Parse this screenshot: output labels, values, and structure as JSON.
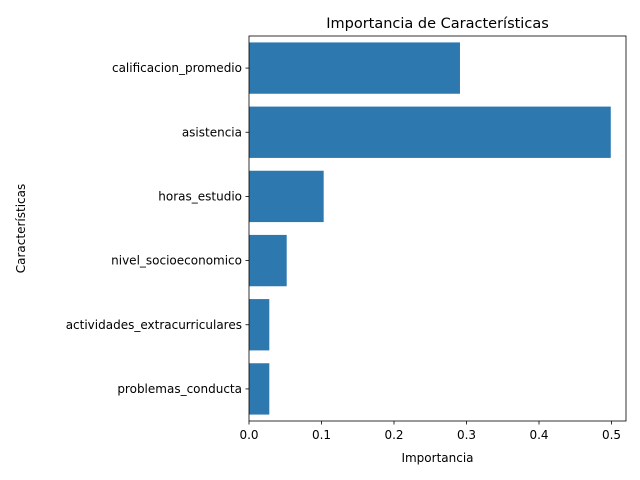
{
  "chart_data": {
    "type": "bar",
    "orientation": "horizontal",
    "title": "Importancia de Características",
    "xlabel": "Importancia",
    "ylabel": "Características",
    "categories": [
      "calificacion_promedio",
      "asistencia",
      "horas_estudio",
      "nivel_socioeconomico",
      "actividades_extracurriculares",
      "problemas_conducta"
    ],
    "values": [
      0.291,
      0.499,
      0.103,
      0.052,
      0.028,
      0.028
    ],
    "xlim": [
      0,
      0.52
    ],
    "xticks": [
      0.0,
      0.1,
      0.2,
      0.3,
      0.4,
      0.5
    ],
    "xtick_labels": [
      "0.0",
      "0.1",
      "0.2",
      "0.3",
      "0.4",
      "0.5"
    ],
    "bar_color": "#2e78b0",
    "grid": false,
    "legend": false
  }
}
